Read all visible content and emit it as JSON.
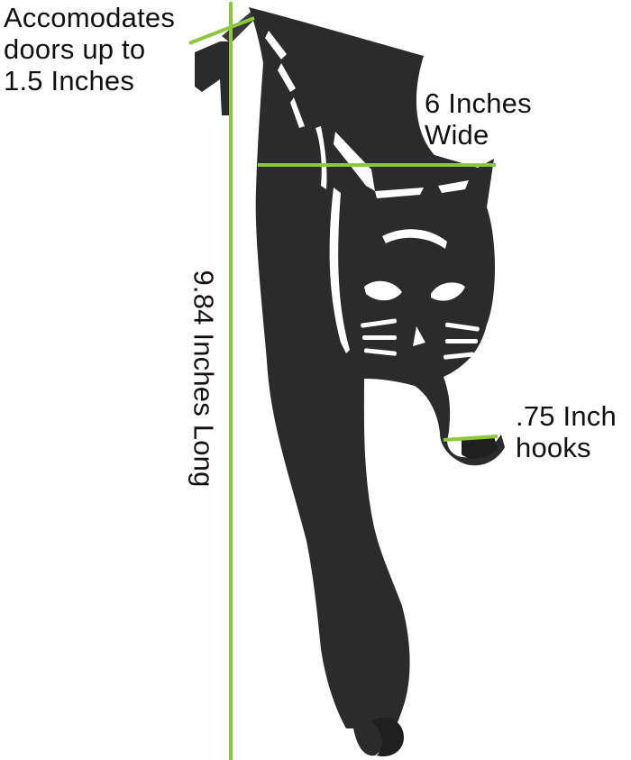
{
  "annotations": {
    "door_thickness": {
      "lines": [
        "Accomodates",
        "doors up to",
        "1.5 Inches"
      ]
    },
    "width": {
      "lines": [
        "6 Inches",
        "Wide"
      ]
    },
    "length": {
      "text": "9.84 Inches Long"
    },
    "hook_depth": {
      "lines": [
        ".75 Inch",
        "hooks"
      ]
    }
  },
  "colors": {
    "product": "#2b2b2b",
    "cutout": "#ffffff",
    "measure_line": "#8dc63f",
    "label_text": "#111111"
  },
  "product": {
    "name_icon": "cat-door-hanger-icon"
  }
}
